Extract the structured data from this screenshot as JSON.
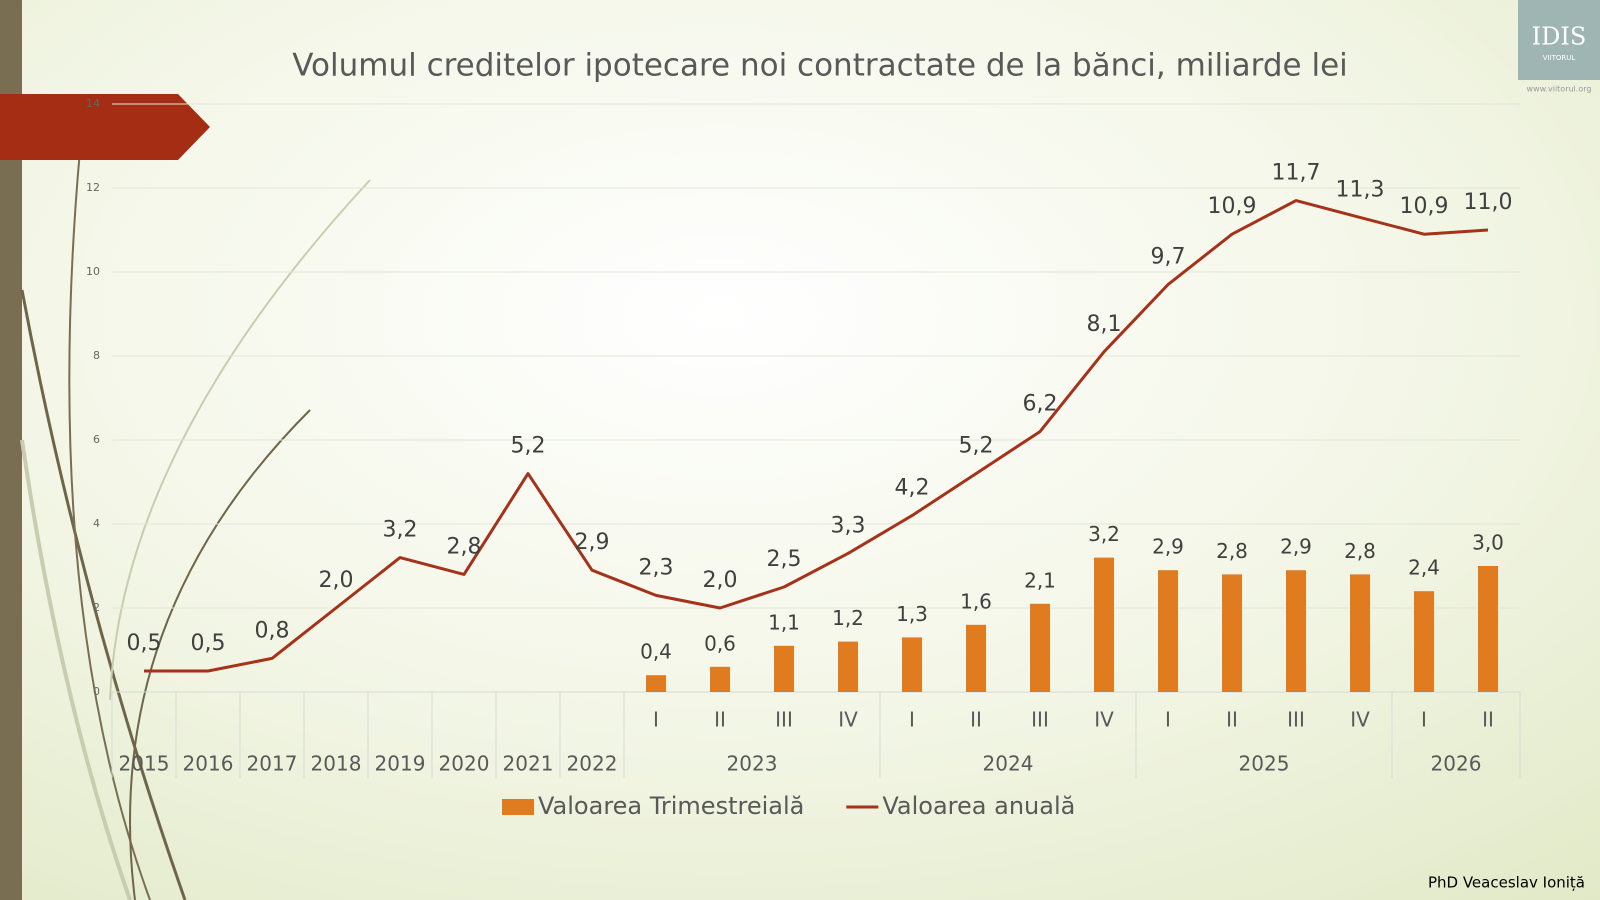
{
  "chart_data": {
    "type": "bar_line",
    "title": "Volumul creditelor ipotecare noi contractate de la bănci, miliarde lei",
    "categories": [
      "2015",
      "2016",
      "2017",
      "2018",
      "2019",
      "2020",
      "2021",
      "2022",
      "I",
      "II",
      "III",
      "IV",
      "I",
      "II",
      "III",
      "IV",
      "I",
      "II",
      "III",
      "IV",
      "I",
      "II"
    ],
    "category_groups": [
      {
        "label": "2023",
        "count": 4
      },
      {
        "label": "2024",
        "count": 4
      },
      {
        "label": "2025",
        "count": 4
      },
      {
        "label": "2026",
        "count": 2
      }
    ],
    "series": [
      {
        "name": "Valoarea Trimestreială",
        "type": "bar",
        "color": "#e07b1f",
        "values": [
          null,
          null,
          null,
          null,
          null,
          null,
          null,
          null,
          0.4,
          0.6,
          1.1,
          1.2,
          1.3,
          1.6,
          2.1,
          3.2,
          2.9,
          2.8,
          2.9,
          2.8,
          2.4,
          3.0
        ],
        "value_labels": [
          null,
          null,
          null,
          null,
          null,
          null,
          null,
          null,
          "0,4",
          "0,6",
          "1,1",
          "1,2",
          "1,3",
          "1,6",
          "2,1",
          "3,2",
          "2,9",
          "2,8",
          "2,9",
          "2,8",
          "2,4",
          "3,0"
        ]
      },
      {
        "name": "Valoarea anuală",
        "type": "line",
        "color": "#a5321a",
        "values": [
          0.5,
          0.5,
          0.8,
          2.0,
          3.2,
          2.8,
          5.2,
          2.9,
          2.3,
          2.0,
          2.5,
          3.3,
          4.2,
          5.2,
          6.2,
          8.1,
          9.7,
          10.9,
          11.7,
          11.3,
          10.9,
          11.0
        ],
        "value_labels": [
          "0,5",
          "0,5",
          "0,8",
          "2,0",
          "3,2",
          "2,8",
          "5,2",
          "2,9",
          "2,3",
          "2,0",
          "2,5",
          "3,3",
          "4,2",
          "5,2",
          "6,2",
          "8,1",
          "9,7",
          "10,9",
          "11,7",
          "11,3",
          "10,9",
          "11,0"
        ]
      }
    ],
    "ylim": [
      0,
      14
    ],
    "yticks": [
      0,
      2,
      4,
      6,
      8,
      10,
      12,
      14
    ],
    "grid": true,
    "legend": "bottom",
    "logo": "IDIS",
    "logo_sub": "VIITORUL",
    "logo_url": "www.viitorul.org",
    "author": "PhD Veaceslav Ioniță"
  }
}
